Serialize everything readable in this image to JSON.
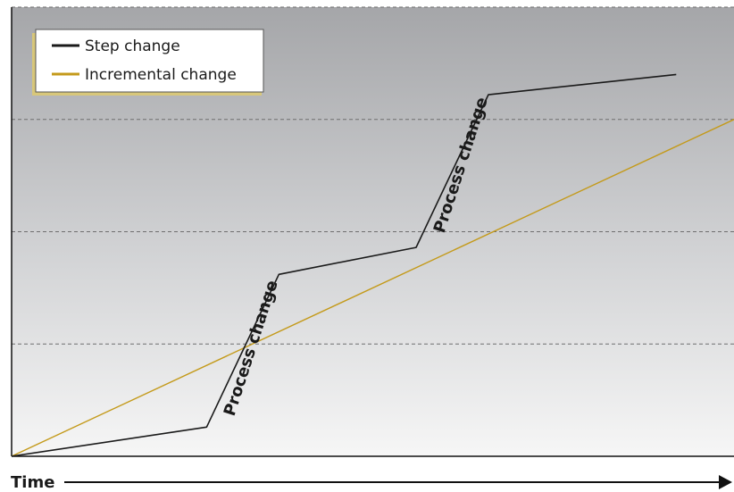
{
  "chart_data": {
    "type": "line",
    "xlabel": "Time",
    "ylabel": "",
    "xlim": [
      0,
      100
    ],
    "ylim": [
      0,
      100
    ],
    "grid": true,
    "legend_position": "top-left",
    "series": [
      {
        "name": "Step change",
        "color": "#1a1a1a",
        "x": [
          0,
          27,
          37,
          56,
          66,
          92
        ],
        "y": [
          0,
          6.5,
          40.5,
          46.5,
          80.5,
          85
        ]
      },
      {
        "name": "Incremental change",
        "color": "#c49a1a",
        "x": [
          0,
          100
        ],
        "y": [
          0,
          75
        ]
      }
    ],
    "annotations": [
      {
        "text": "Process change"
      },
      {
        "text": "Process change"
      }
    ]
  }
}
